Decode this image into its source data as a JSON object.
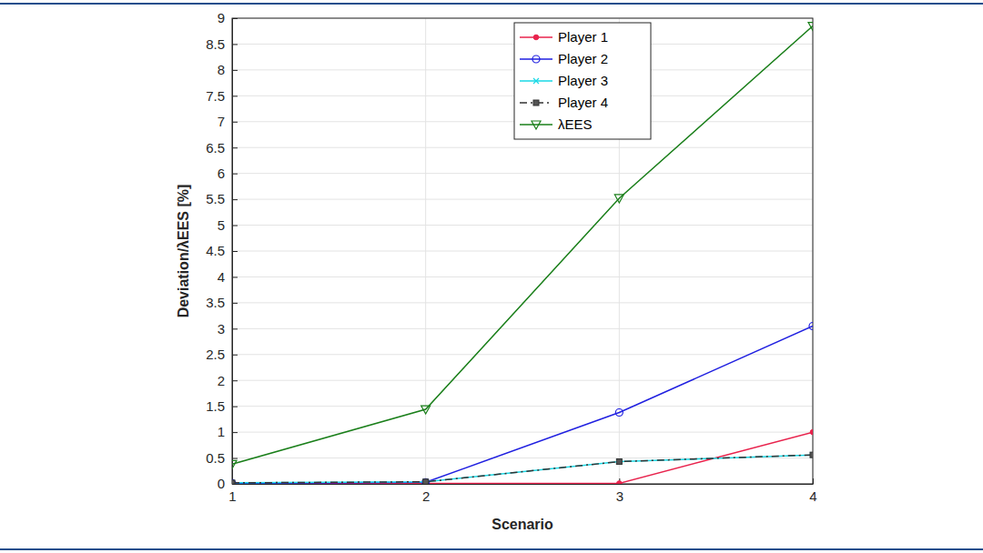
{
  "chart_data": {
    "type": "line",
    "x_label": "Scenario",
    "y_label": "Deviation/λEES [%]",
    "x": [
      1,
      2,
      3,
      4
    ],
    "xlim": [
      1,
      4
    ],
    "xticks": [
      1,
      2,
      3,
      4
    ],
    "ylim": [
      0,
      9
    ],
    "yticks": [
      0,
      0.5,
      1,
      1.5,
      2,
      2.5,
      3,
      3.5,
      4,
      4.5,
      5,
      5.5,
      6,
      6.5,
      7,
      7.5,
      8,
      8.5,
      9
    ],
    "grid": true,
    "legend": "top",
    "series": [
      {
        "name": "Player 1",
        "color": "#e8234d",
        "marker": "dot",
        "line_style": "solid",
        "values": [
          0.01,
          0.01,
          0.01,
          1.0
        ]
      },
      {
        "name": "Player 2",
        "color": "#1f1fe0",
        "marker": "circle",
        "line_style": "solid",
        "values": [
          0.01,
          0.03,
          1.38,
          3.05
        ]
      },
      {
        "name": "Player 3",
        "color": "#19d9e6",
        "marker": "x",
        "line_style": "solid",
        "values": [
          0.02,
          0.04,
          0.43,
          0.56
        ]
      },
      {
        "name": "Player 4",
        "color": "#333333",
        "marker": "square",
        "line_style": "dashdot",
        "values": [
          0.02,
          0.04,
          0.43,
          0.56
        ]
      },
      {
        "name": "λEES",
        "color": "#1a7f1a",
        "marker": "triangle-down",
        "line_style": "solid",
        "values": [
          0.38,
          1.44,
          5.52,
          8.85
        ]
      }
    ]
  }
}
